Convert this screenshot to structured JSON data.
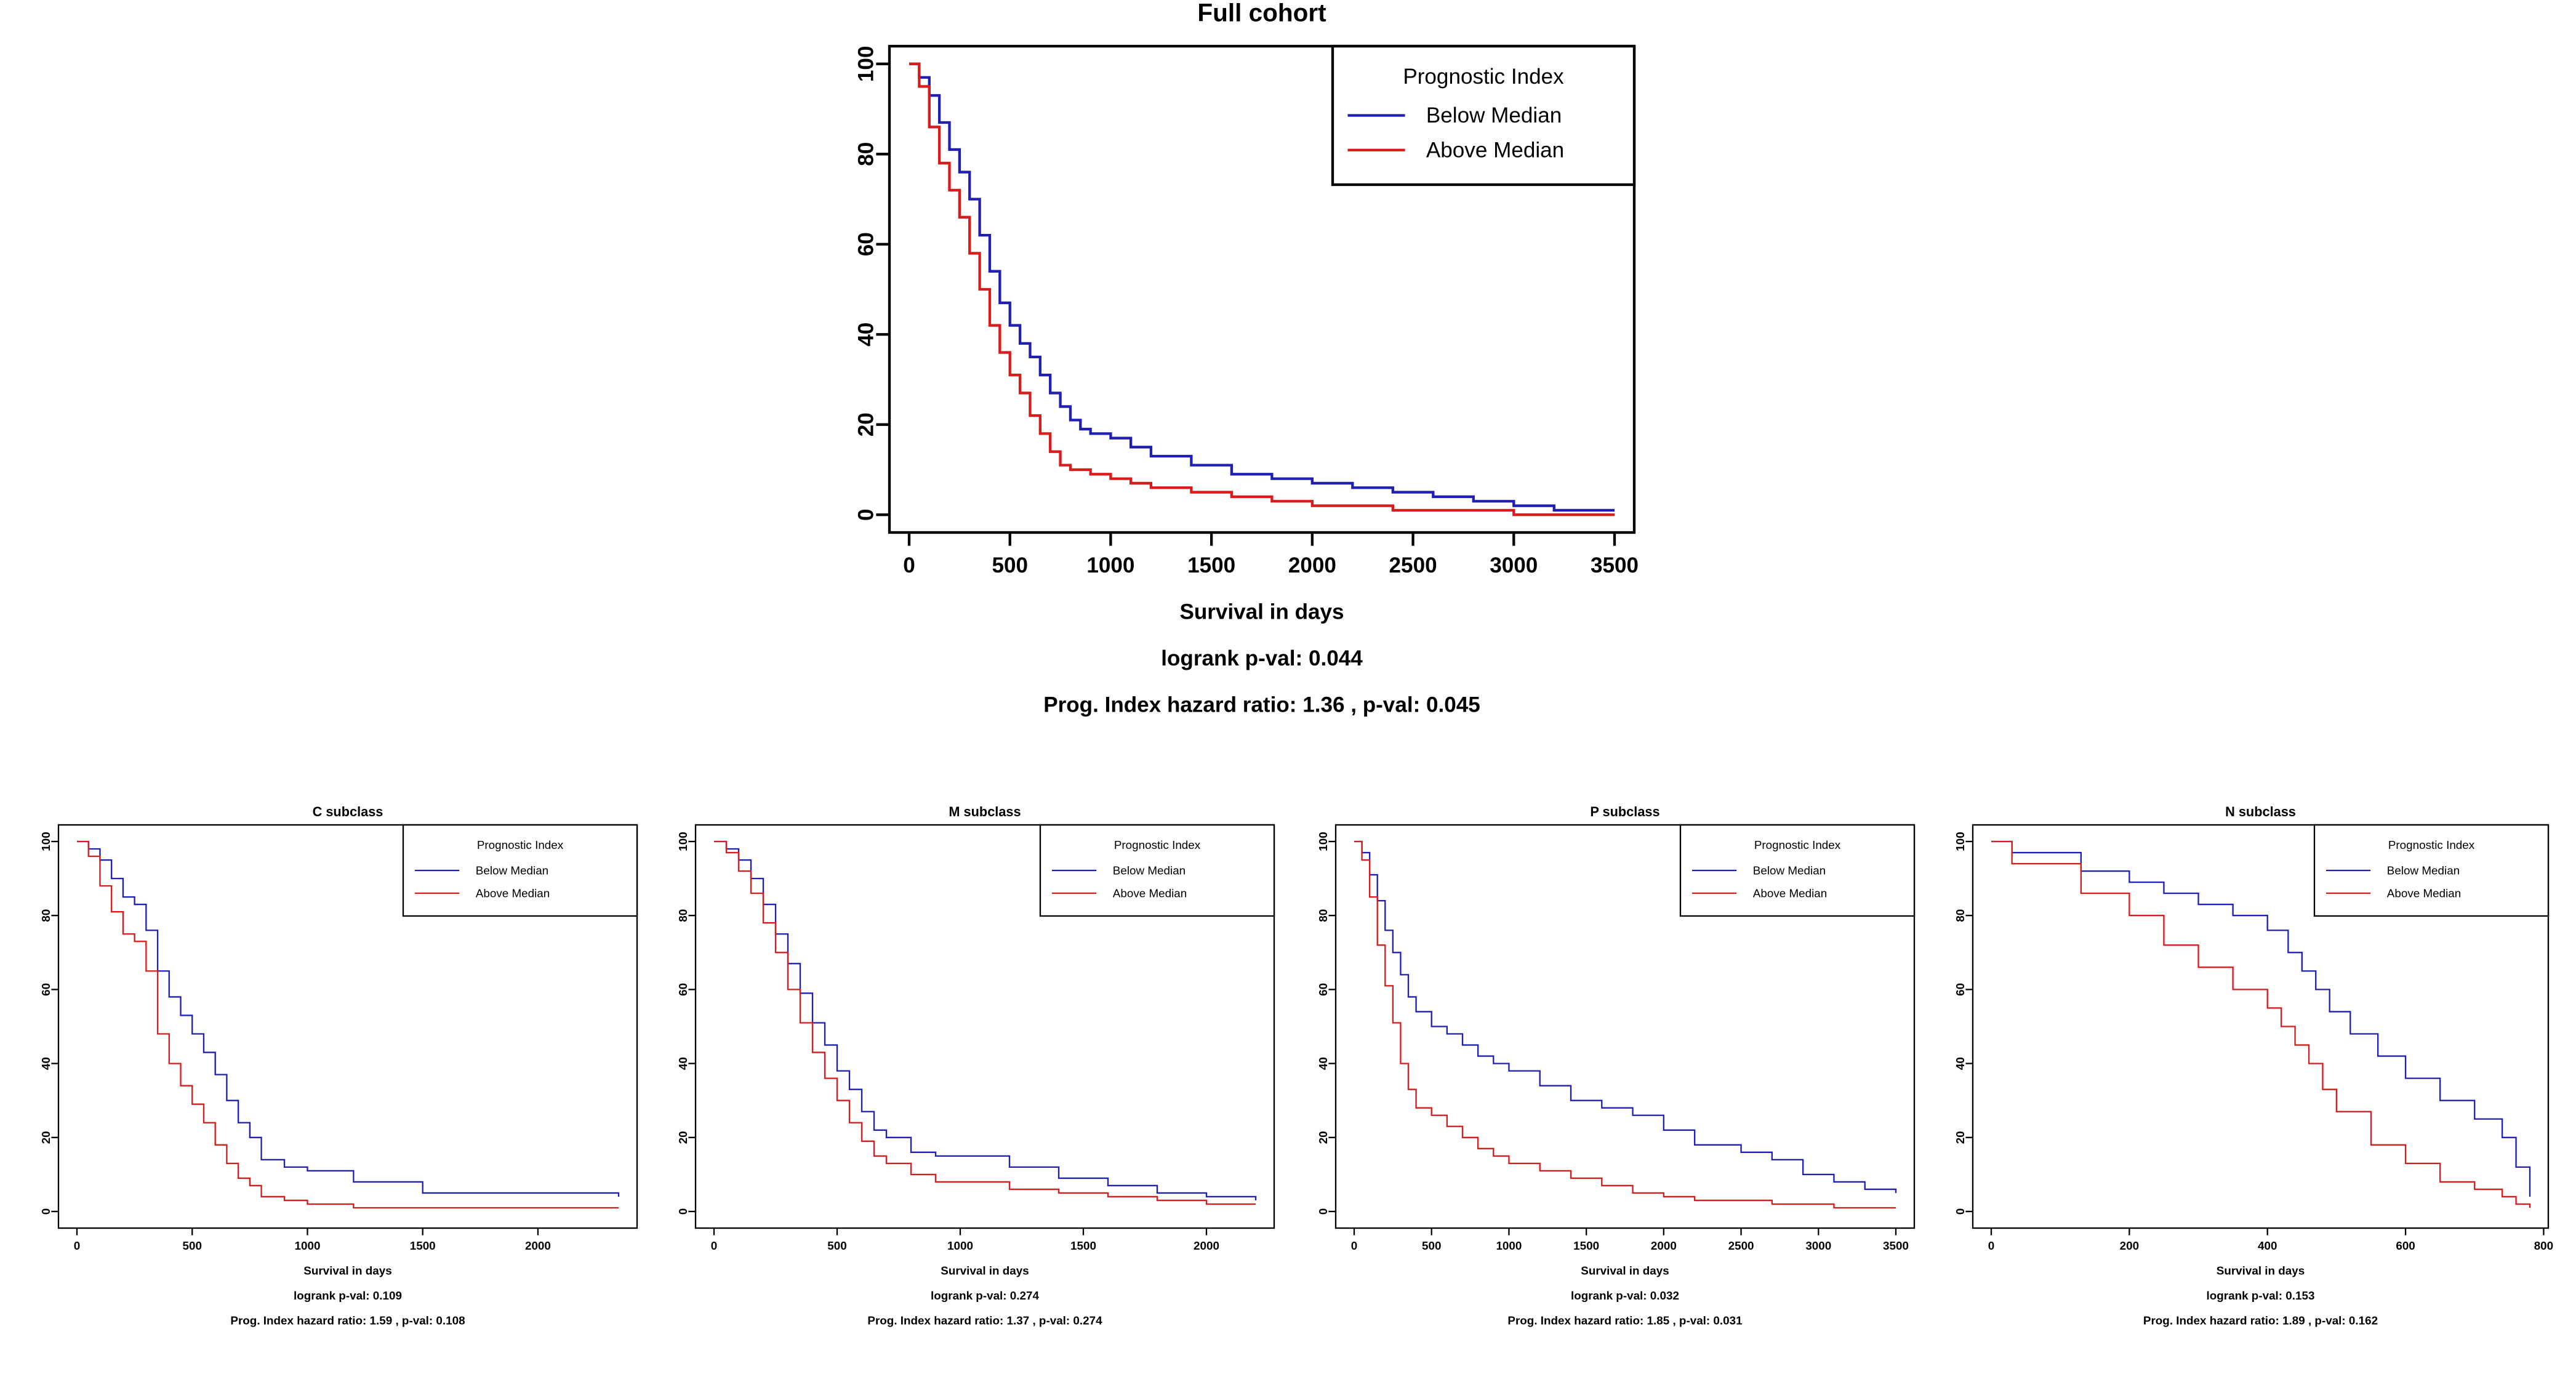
{
  "colors": {
    "below": "#1f1fb4",
    "above": "#d81b1b",
    "axis": "#000000"
  },
  "chart_data": [
    {
      "id": "full",
      "type": "line",
      "title": "Full cohort",
      "xlabel": "Survival in days",
      "ylabel": "",
      "xlim": [
        0,
        3500
      ],
      "ylim": [
        0,
        100
      ],
      "xticks": [
        0,
        500,
        1000,
        1500,
        2000,
        2500,
        3000,
        3500
      ],
      "yticks": [
        0,
        20,
        40,
        60,
        80,
        100
      ],
      "legend": {
        "title": "Prognostic Index",
        "position": "top-right",
        "entries": [
          "Below Median",
          "Above Median"
        ]
      },
      "stats": [
        "logrank p-val: 0.044",
        "Prog. Index hazard ratio:  1.36 , p-val:  0.045"
      ],
      "series": [
        {
          "name": "Below Median",
          "color_key": "below",
          "x": [
            0,
            50,
            100,
            150,
            200,
            250,
            300,
            350,
            400,
            450,
            500,
            550,
            600,
            650,
            700,
            750,
            800,
            850,
            900,
            1000,
            1100,
            1200,
            1400,
            1600,
            1800,
            2000,
            2200,
            2400,
            2600,
            2800,
            3000,
            3200,
            3500
          ],
          "y": [
            100,
            97,
            93,
            87,
            81,
            76,
            70,
            62,
            54,
            47,
            42,
            38,
            35,
            31,
            27,
            24,
            21,
            19,
            18,
            17,
            15,
            13,
            11,
            9,
            8,
            7,
            6,
            5,
            4,
            3,
            2,
            1,
            1
          ]
        },
        {
          "name": "Above Median",
          "color_key": "above",
          "x": [
            0,
            50,
            100,
            150,
            200,
            250,
            300,
            350,
            400,
            450,
            500,
            550,
            600,
            650,
            700,
            750,
            800,
            900,
            1000,
            1100,
            1200,
            1400,
            1600,
            1800,
            2000,
            2200,
            2400,
            2600,
            2800,
            3000,
            3500
          ],
          "y": [
            100,
            95,
            86,
            78,
            72,
            66,
            58,
            50,
            42,
            36,
            31,
            27,
            22,
            18,
            14,
            11,
            10,
            9,
            8,
            7,
            6,
            5,
            4,
            3,
            2,
            2,
            1,
            1,
            1,
            0,
            0
          ]
        }
      ]
    },
    {
      "id": "c",
      "type": "line",
      "title": "C subclass",
      "xlabel": "Survival in days",
      "ylabel": "",
      "xlim": [
        0,
        2350
      ],
      "ylim": [
        0,
        100
      ],
      "xticks": [
        0,
        500,
        1000,
        1500,
        2000
      ],
      "yticks": [
        0,
        20,
        40,
        60,
        80,
        100
      ],
      "legend": {
        "title": "Prognostic Index",
        "position": "top-right",
        "entries": [
          "Below Median",
          "Above Median"
        ]
      },
      "stats": [
        "logrank p-val: 0.109",
        "Prog. Index hazard ratio:  1.59 , p-val:  0.108"
      ],
      "series": [
        {
          "name": "Below Median",
          "color_key": "below",
          "x": [
            0,
            50,
            100,
            150,
            200,
            250,
            300,
            350,
            400,
            450,
            500,
            550,
            600,
            650,
            700,
            750,
            800,
            900,
            1000,
            1200,
            1500,
            2000,
            2350
          ],
          "y": [
            100,
            98,
            95,
            90,
            85,
            83,
            76,
            65,
            58,
            53,
            48,
            43,
            37,
            30,
            24,
            20,
            14,
            12,
            11,
            8,
            5,
            5,
            4
          ]
        },
        {
          "name": "Above Median",
          "color_key": "above",
          "x": [
            0,
            50,
            100,
            150,
            200,
            250,
            300,
            350,
            400,
            450,
            500,
            550,
            600,
            650,
            700,
            750,
            800,
            900,
            1000,
            1200,
            1500,
            2000,
            2350
          ],
          "y": [
            100,
            96,
            88,
            81,
            75,
            73,
            65,
            48,
            40,
            34,
            29,
            24,
            18,
            13,
            9,
            7,
            4,
            3,
            2,
            1,
            1,
            1,
            1
          ]
        }
      ]
    },
    {
      "id": "m",
      "type": "line",
      "title": "M subclass",
      "xlabel": "Survival in days",
      "ylabel": "",
      "xlim": [
        0,
        2200
      ],
      "ylim": [
        0,
        100
      ],
      "xticks": [
        0,
        500,
        1000,
        1500,
        2000
      ],
      "yticks": [
        0,
        20,
        40,
        60,
        80,
        100
      ],
      "legend": {
        "title": "Prognostic Index",
        "position": "top-right",
        "entries": [
          "Below Median",
          "Above Median"
        ]
      },
      "stats": [
        "logrank p-val: 0.274",
        "Prog. Index hazard ratio:  1.37 , p-val:  0.274"
      ],
      "series": [
        {
          "name": "Below Median",
          "color_key": "below",
          "x": [
            0,
            50,
            100,
            150,
            200,
            250,
            300,
            350,
            400,
            450,
            500,
            550,
            600,
            650,
            700,
            800,
            900,
            1000,
            1200,
            1400,
            1600,
            1800,
            2000,
            2200
          ],
          "y": [
            100,
            98,
            95,
            90,
            83,
            75,
            67,
            59,
            51,
            45,
            38,
            33,
            27,
            22,
            20,
            16,
            15,
            15,
            12,
            9,
            7,
            5,
            4,
            3
          ]
        },
        {
          "name": "Above Median",
          "color_key": "above",
          "x": [
            0,
            50,
            100,
            150,
            200,
            250,
            300,
            350,
            400,
            450,
            500,
            550,
            600,
            650,
            700,
            800,
            900,
            1000,
            1200,
            1400,
            1600,
            1800,
            2000,
            2200
          ],
          "y": [
            100,
            97,
            92,
            86,
            78,
            70,
            60,
            51,
            43,
            36,
            30,
            24,
            19,
            15,
            13,
            10,
            8,
            8,
            6,
            5,
            4,
            3,
            2,
            2
          ]
        }
      ]
    },
    {
      "id": "p",
      "type": "line",
      "title": "P subclass",
      "xlabel": "Survival in days",
      "ylabel": "",
      "xlim": [
        0,
        3500
      ],
      "ylim": [
        0,
        100
      ],
      "xticks": [
        0,
        500,
        1000,
        1500,
        2000,
        2500,
        3000,
        3500
      ],
      "yticks": [
        0,
        20,
        40,
        60,
        80,
        100
      ],
      "legend": {
        "title": "Prognostic Index",
        "position": "top-right",
        "entries": [
          "Below Median",
          "Above Median"
        ]
      },
      "stats": [
        "logrank p-val: 0.032",
        "Prog. Index hazard ratio:  1.85 , p-val:  0.031"
      ],
      "series": [
        {
          "name": "Below Median",
          "color_key": "below",
          "x": [
            0,
            50,
            100,
            150,
            200,
            250,
            300,
            350,
            400,
            500,
            600,
            700,
            800,
            900,
            1000,
            1200,
            1400,
            1600,
            1800,
            2000,
            2200,
            2500,
            2700,
            2900,
            3100,
            3300,
            3500
          ],
          "y": [
            100,
            97,
            91,
            84,
            76,
            70,
            64,
            58,
            54,
            50,
            48,
            45,
            42,
            40,
            38,
            34,
            30,
            28,
            26,
            22,
            18,
            16,
            14,
            10,
            8,
            6,
            5
          ]
        },
        {
          "name": "Above Median",
          "color_key": "above",
          "x": [
            0,
            50,
            100,
            150,
            200,
            250,
            300,
            350,
            400,
            500,
            600,
            700,
            800,
            900,
            1000,
            1200,
            1400,
            1600,
            1800,
            2000,
            2200,
            2500,
            2700,
            2900,
            3100,
            3300,
            3500
          ],
          "y": [
            100,
            95,
            85,
            72,
            61,
            51,
            40,
            33,
            28,
            26,
            23,
            20,
            17,
            15,
            13,
            11,
            9,
            7,
            5,
            4,
            3,
            3,
            2,
            2,
            1,
            1,
            1
          ]
        }
      ]
    },
    {
      "id": "n",
      "type": "line",
      "title": "N subclass",
      "xlabel": "Survival in days",
      "ylabel": "",
      "xlim": [
        0,
        780
      ],
      "ylim": [
        0,
        100
      ],
      "xticks": [
        0,
        200,
        400,
        600,
        800
      ],
      "yticks": [
        0,
        20,
        40,
        60,
        80,
        100
      ],
      "legend": {
        "title": "Prognostic Index",
        "position": "top-right",
        "entries": [
          "Below Median",
          "Above Median"
        ]
      },
      "stats": [
        "logrank p-val: 0.153",
        "Prog. Index hazard ratio:  1.89 , p-val:  0.162"
      ],
      "series": [
        {
          "name": "Below Median",
          "color_key": "below",
          "x": [
            0,
            30,
            100,
            130,
            200,
            250,
            300,
            350,
            400,
            430,
            450,
            470,
            490,
            520,
            560,
            600,
            650,
            700,
            740,
            760,
            780
          ],
          "y": [
            100,
            97,
            97,
            92,
            89,
            86,
            83,
            80,
            76,
            70,
            65,
            60,
            54,
            48,
            42,
            36,
            30,
            25,
            20,
            12,
            4
          ]
        },
        {
          "name": "Above Median",
          "color_key": "above",
          "x": [
            0,
            30,
            100,
            130,
            200,
            250,
            300,
            350,
            400,
            420,
            440,
            460,
            480,
            500,
            550,
            600,
            650,
            700,
            740,
            760,
            780
          ],
          "y": [
            100,
            94,
            94,
            86,
            80,
            72,
            66,
            60,
            55,
            50,
            45,
            40,
            33,
            27,
            18,
            13,
            8,
            6,
            4,
            2,
            1
          ]
        }
      ]
    }
  ]
}
